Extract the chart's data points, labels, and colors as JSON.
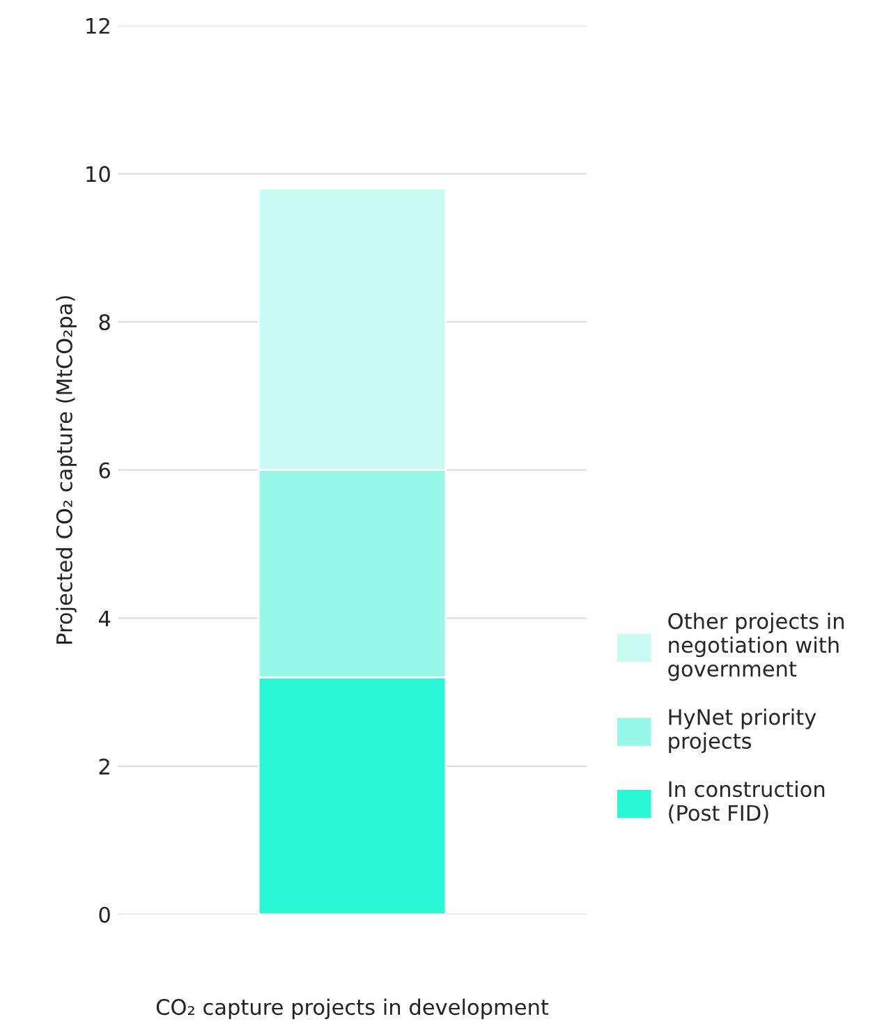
{
  "chart_data": {
    "type": "bar",
    "stacked": true,
    "categories": [
      null
    ],
    "series": [
      {
        "name": "In construction (Post FID)",
        "color": "#2af7d6",
        "values": [
          3.2
        ]
      },
      {
        "name": "HyNet priority projects",
        "color": "#97f8e9",
        "values": [
          2.8
        ]
      },
      {
        "name": "Other projects in negotiation with government",
        "color": "#c9fbf2",
        "values": [
          3.8
        ]
      }
    ],
    "xlabel": "CO₂ capture projects in development",
    "ylabel": "Projected CO₂ capture (MtCO₂pa)",
    "ylim": [
      0,
      12
    ],
    "yticks": [
      0,
      2,
      4,
      6,
      8,
      10,
      12
    ],
    "grid": "y",
    "legend": "right"
  }
}
